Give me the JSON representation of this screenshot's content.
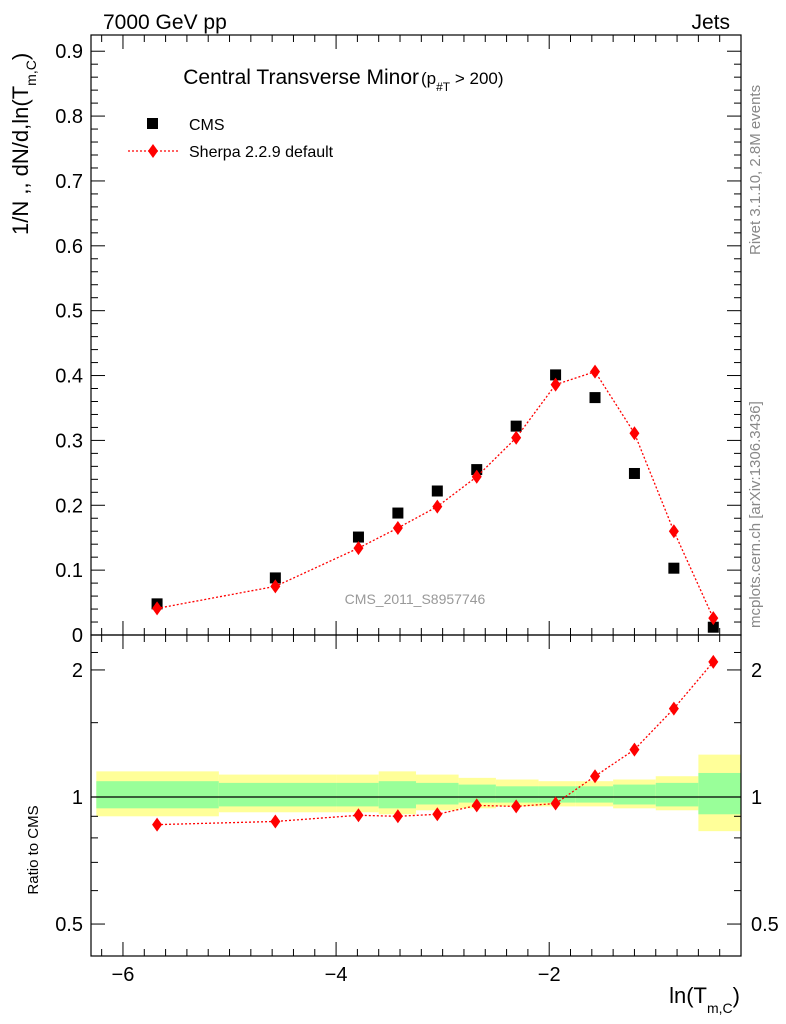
{
  "header": {
    "left": "7000 GeV pp",
    "right": "Jets"
  },
  "side_labels": {
    "rivet": "Rivet 3.1.10,  2.8M events",
    "mcplots": "mcplots.cern.ch [arXiv:1306.3436]"
  },
  "chart_data": [
    {
      "type": "scatter",
      "panel": "main",
      "title_main": "Central Transverse Minor",
      "title_cut_prefix": "(p",
      "title_cut_sub": "#T",
      "title_cut_suffix": " > 200)",
      "ylabel": "1/N ,, dN/d,ln(T",
      "ylabel_sub": "m,C",
      "ylabel_close": ")",
      "watermark": "CMS_2011_S8957746",
      "xlim": [
        -6.3,
        -0.2
      ],
      "ylim": [
        0,
        0.925
      ],
      "yticks": [
        0,
        0.1,
        0.2,
        0.3,
        0.4,
        0.5,
        0.6,
        0.7,
        0.8,
        0.9
      ],
      "ytick_labels": [
        "0",
        "0.1",
        "0.2",
        "0.3",
        "0.4",
        "0.5",
        "0.6",
        "0.7",
        "0.8",
        "0.9"
      ],
      "legend_position": "top-left",
      "series": [
        {
          "name": "CMS",
          "marker": "square",
          "color": "#000000",
          "x": [
            -5.68,
            -4.57,
            -3.79,
            -3.42,
            -3.05,
            -2.68,
            -2.31,
            -1.94,
            -1.57,
            -1.2,
            -0.83,
            -0.46
          ],
          "y": [
            0.048,
            0.088,
            0.151,
            0.188,
            0.222,
            0.255,
            0.322,
            0.401,
            0.366,
            0.249,
            0.103,
            0.012
          ]
        },
        {
          "name": "Sherpa 2.2.9 default",
          "marker": "diamond",
          "color": "#ff0000",
          "x": [
            -5.68,
            -4.57,
            -3.79,
            -3.42,
            -3.05,
            -2.68,
            -2.31,
            -1.94,
            -1.57,
            -1.2,
            -0.83,
            -0.46
          ],
          "y": [
            0.041,
            0.075,
            0.134,
            0.165,
            0.198,
            0.244,
            0.304,
            0.386,
            0.406,
            0.311,
            0.16,
            0.026
          ]
        }
      ]
    },
    {
      "type": "scatter",
      "panel": "ratio",
      "ylabel": "Ratio to CMS",
      "xlabel_main": "ln(T",
      "xlabel_sub": "m,C",
      "xlabel_close": ")",
      "xlim": [
        -6.3,
        -0.2
      ],
      "xticks": [
        -6,
        -4,
        -2
      ],
      "xtick_labels": [
        "−6",
        "−4",
        "−2"
      ],
      "ylim": [
        0.42,
        2.42
      ],
      "yscale": "log",
      "yticks": [
        0.5,
        1,
        2
      ],
      "ytick_labels": [
        "0.5",
        "1",
        "2"
      ],
      "bands": {
        "edges": [
          -6.25,
          -5.1,
          -4.0,
          -3.6,
          -3.25,
          -2.85,
          -2.5,
          -2.1,
          -1.75,
          -1.4,
          -1.0,
          -0.6,
          -0.2
        ],
        "yellow_lo": [
          0.9,
          0.92,
          0.92,
          0.91,
          0.93,
          0.94,
          0.95,
          0.95,
          0.95,
          0.94,
          0.93,
          0.83
        ],
        "yellow_hi": [
          1.15,
          1.13,
          1.13,
          1.15,
          1.13,
          1.11,
          1.1,
          1.09,
          1.09,
          1.1,
          1.12,
          1.26
        ],
        "green_lo": [
          0.94,
          0.95,
          0.95,
          0.94,
          0.96,
          0.97,
          0.97,
          0.97,
          0.97,
          0.96,
          0.95,
          0.91
        ],
        "green_hi": [
          1.09,
          1.08,
          1.08,
          1.09,
          1.08,
          1.07,
          1.06,
          1.06,
          1.06,
          1.07,
          1.08,
          1.14
        ],
        "yellow_color": "#ffff99",
        "green_color": "#99ff99"
      },
      "series": [
        {
          "name": "Sherpa 2.2.9 default",
          "marker": "diamond",
          "color": "#ff0000",
          "x": [
            -5.68,
            -4.57,
            -3.79,
            -3.42,
            -3.05,
            -2.68,
            -2.31,
            -1.94,
            -1.57,
            -1.2,
            -0.83,
            -0.46
          ],
          "y": [
            0.86,
            0.875,
            0.905,
            0.9,
            0.91,
            0.955,
            0.95,
            0.965,
            1.12,
            1.295,
            1.62,
            2.09
          ],
          "err": [
            0.0,
            0.0,
            0.0,
            0.0,
            0.0,
            0.0,
            0.0,
            0.0,
            0.0,
            0.03,
            0.04,
            0.05
          ]
        }
      ]
    }
  ]
}
